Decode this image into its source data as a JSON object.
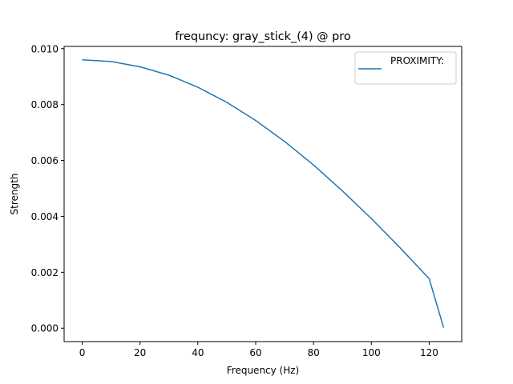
{
  "chart_data": {
    "type": "line",
    "title": "frequncy: gray_stick_(4) @ pro",
    "xlabel": "Frequency (Hz)",
    "ylabel": "Strength",
    "xlim": [
      -6.25,
      131.25
    ],
    "ylim": [
      -0.00048,
      0.01008
    ],
    "xticks": [
      0,
      20,
      40,
      60,
      80,
      100,
      120
    ],
    "xtick_labels": [
      "0",
      "20",
      "40",
      "60",
      "80",
      "100",
      "120"
    ],
    "yticks": [
      0.0,
      0.002,
      0.004,
      0.006,
      0.008,
      0.01
    ],
    "ytick_labels": [
      "0.000",
      "0.002",
      "0.004",
      "0.006",
      "0.008",
      "0.010"
    ],
    "grid": false,
    "legend": {
      "position": "upper right"
    },
    "series": [
      {
        "name": "PROXIMITY:",
        "color": "#1f77b4",
        "x": [
          0,
          10,
          20,
          30,
          40,
          50,
          60,
          70,
          80,
          90,
          100,
          110,
          120,
          125
        ],
        "y": [
          0.0096,
          0.00954,
          0.00935,
          0.00905,
          0.00862,
          0.00808,
          0.00743,
          0.00668,
          0.00584,
          0.00491,
          0.00392,
          0.00287,
          0.00177,
          2e-05
        ]
      }
    ]
  }
}
